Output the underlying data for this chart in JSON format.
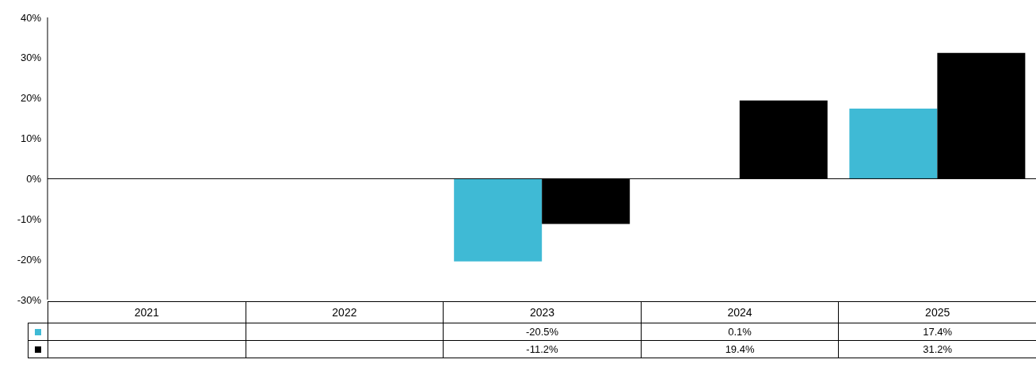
{
  "chart_data": {
    "type": "bar",
    "categories": [
      "2021",
      "2022",
      "2023",
      "2024",
      "2025"
    ],
    "series": [
      {
        "color": "#3fbad5",
        "values": [
          null,
          null,
          -20.5,
          0.1,
          17.4
        ],
        "value_labels": [
          null,
          null,
          "-20.5%",
          "0.1%",
          "17.4%"
        ]
      },
      {
        "color": "#000000",
        "values": [
          null,
          null,
          -11.2,
          19.4,
          31.2
        ],
        "value_labels": [
          null,
          null,
          "-11.2%",
          "19.4%",
          "31.2%"
        ]
      }
    ],
    "ylim": [
      -30,
      40
    ],
    "yticks": [
      {
        "value": -30,
        "label": "-30%"
      },
      {
        "value": -20,
        "label": "-20%"
      },
      {
        "value": -10,
        "label": "-10%"
      },
      {
        "value": 0,
        "label": "0%"
      },
      {
        "value": 10,
        "label": "10%"
      },
      {
        "value": 20,
        "label": "20%"
      },
      {
        "value": 30,
        "label": "30%"
      },
      {
        "value": 40,
        "label": "40%"
      }
    ],
    "legend": false
  }
}
